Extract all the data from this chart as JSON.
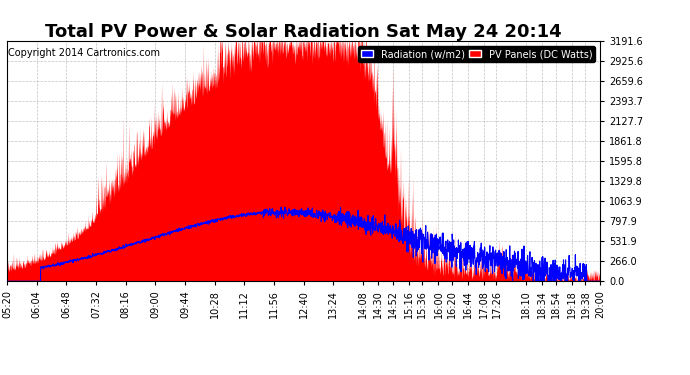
{
  "title": "Total PV Power & Solar Radiation Sat May 24 20:14",
  "copyright": "Copyright 2014 Cartronics.com",
  "legend_radiation": "Radiation (w/m2)",
  "legend_pv": "PV Panels (DC Watts)",
  "radiation_color": "#0000ff",
  "pv_color": "#ff0000",
  "bg_color": "#ffffff",
  "plot_bg_color": "#ffffff",
  "grid_color": "#aaaaaa",
  "ytick_values": [
    0.0,
    266.0,
    531.9,
    797.9,
    1063.9,
    1329.8,
    1595.8,
    1861.8,
    2127.7,
    2393.7,
    2659.6,
    2925.6,
    3191.6
  ],
  "ymax": 3191.6,
  "ymin": 0.0,
  "title_fontsize": 13,
  "copyright_fontsize": 7,
  "tick_fontsize": 7
}
